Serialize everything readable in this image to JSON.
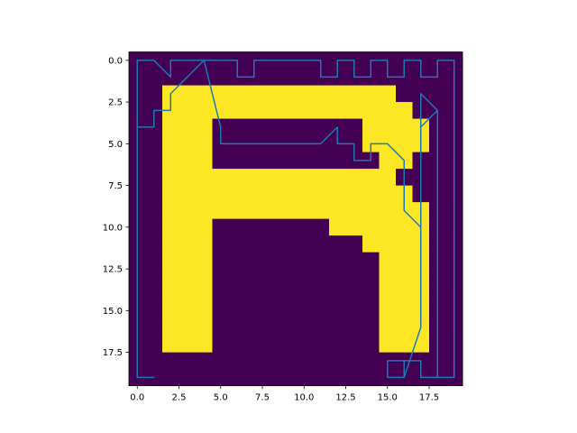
{
  "chart_data": {
    "type": "heatmap",
    "title": "",
    "xlabel": "",
    "ylabel": "",
    "xlim": [
      -0.5,
      19.5
    ],
    "ylim": [
      19.5,
      -0.5
    ],
    "grid": false,
    "legend": "none",
    "x_ticks": [
      0.0,
      2.5,
      5.0,
      7.5,
      10.0,
      12.5,
      15.0,
      17.5
    ],
    "x_tick_labels": [
      "0.0",
      "2.5",
      "5.0",
      "7.5",
      "10.0",
      "12.5",
      "15.0",
      "17.5"
    ],
    "y_ticks": [
      0.0,
      2.5,
      5.0,
      7.5,
      10.0,
      12.5,
      15.0,
      17.5
    ],
    "y_tick_labels": [
      "0.0",
      "2.5",
      "5.0",
      "7.5",
      "10.0",
      "12.5",
      "15.0",
      "17.5"
    ],
    "colormap": {
      "0": "#440154",
      "1": "#fde725"
    },
    "grid_values": [
      [
        0,
        0,
        0,
        0,
        0,
        0,
        0,
        0,
        0,
        0,
        0,
        0,
        0,
        0,
        0,
        0,
        0,
        0,
        0,
        0
      ],
      [
        0,
        0,
        0,
        0,
        0,
        0,
        0,
        0,
        0,
        0,
        0,
        0,
        0,
        0,
        0,
        0,
        0,
        0,
        0,
        0
      ],
      [
        0,
        0,
        1,
        1,
        1,
        1,
        1,
        1,
        1,
        1,
        1,
        1,
        1,
        1,
        1,
        1,
        0,
        0,
        0,
        0
      ],
      [
        0,
        0,
        1,
        1,
        1,
        1,
        1,
        1,
        1,
        1,
        1,
        1,
        1,
        1,
        1,
        1,
        1,
        0,
        0,
        0
      ],
      [
        0,
        0,
        1,
        1,
        1,
        0,
        0,
        0,
        0,
        0,
        0,
        0,
        0,
        0,
        1,
        1,
        1,
        1,
        0,
        0
      ],
      [
        0,
        0,
        1,
        1,
        1,
        0,
        0,
        0,
        0,
        0,
        0,
        0,
        0,
        0,
        1,
        1,
        1,
        1,
        0,
        0
      ],
      [
        0,
        0,
        1,
        1,
        1,
        0,
        0,
        0,
        0,
        0,
        0,
        0,
        0,
        0,
        0,
        1,
        1,
        0,
        0,
        0
      ],
      [
        0,
        0,
        1,
        1,
        1,
        1,
        1,
        1,
        1,
        1,
        1,
        1,
        1,
        1,
        1,
        1,
        0,
        0,
        0,
        0
      ],
      [
        0,
        0,
        1,
        1,
        1,
        1,
        1,
        1,
        1,
        1,
        1,
        1,
        1,
        1,
        1,
        1,
        1,
        0,
        0,
        0
      ],
      [
        0,
        0,
        1,
        1,
        1,
        1,
        1,
        1,
        1,
        1,
        1,
        1,
        1,
        1,
        1,
        1,
        1,
        1,
        0,
        0
      ],
      [
        0,
        0,
        1,
        1,
        1,
        0,
        0,
        0,
        0,
        0,
        0,
        0,
        1,
        1,
        1,
        1,
        1,
        1,
        0,
        0
      ],
      [
        0,
        0,
        1,
        1,
        1,
        0,
        0,
        0,
        0,
        0,
        0,
        0,
        0,
        0,
        1,
        1,
        1,
        1,
        0,
        0
      ],
      [
        0,
        0,
        1,
        1,
        1,
        0,
        0,
        0,
        0,
        0,
        0,
        0,
        0,
        0,
        0,
        1,
        1,
        1,
        0,
        0
      ],
      [
        0,
        0,
        1,
        1,
        1,
        0,
        0,
        0,
        0,
        0,
        0,
        0,
        0,
        0,
        0,
        1,
        1,
        1,
        0,
        0
      ],
      [
        0,
        0,
        1,
        1,
        1,
        0,
        0,
        0,
        0,
        0,
        0,
        0,
        0,
        0,
        0,
        1,
        1,
        1,
        0,
        0
      ],
      [
        0,
        0,
        1,
        1,
        1,
        0,
        0,
        0,
        0,
        0,
        0,
        0,
        0,
        0,
        0,
        1,
        1,
        1,
        0,
        0
      ],
      [
        0,
        0,
        1,
        1,
        1,
        0,
        0,
        0,
        0,
        0,
        0,
        0,
        0,
        0,
        0,
        1,
        1,
        1,
        0,
        0
      ],
      [
        0,
        0,
        1,
        1,
        1,
        0,
        0,
        0,
        0,
        0,
        0,
        0,
        0,
        0,
        0,
        1,
        1,
        1,
        0,
        0
      ],
      [
        0,
        0,
        0,
        0,
        0,
        0,
        0,
        0,
        0,
        0,
        0,
        0,
        0,
        0,
        0,
        0,
        0,
        0,
        0,
        0
      ],
      [
        0,
        0,
        0,
        0,
        0,
        0,
        0,
        0,
        0,
        0,
        0,
        0,
        0,
        0,
        0,
        0,
        0,
        0,
        0,
        0
      ]
    ],
    "series": [
      {
        "type": "line",
        "color": "#1f77b4",
        "x": [
          0,
          0,
          1,
          2,
          2,
          6,
          6,
          7,
          7,
          11,
          11,
          12,
          12,
          13,
          13,
          14,
          14,
          15,
          15,
          16,
          16,
          17,
          17,
          18,
          18,
          19,
          19,
          18,
          18,
          17,
          17,
          16,
          16,
          15,
          15,
          16,
          16,
          17,
          17,
          18,
          18,
          17,
          17,
          16,
          16,
          15,
          14,
          14,
          13,
          13,
          12,
          12,
          11,
          10,
          9,
          8,
          7,
          6,
          5,
          5,
          4,
          4,
          3,
          3,
          2,
          2,
          1,
          1,
          0,
          0,
          1,
          0,
          0
        ],
        "y": [
          19,
          0,
          0,
          1,
          0,
          0,
          1,
          1,
          0,
          0,
          1,
          1,
          0,
          0,
          1,
          1,
          0,
          0,
          1,
          1,
          0,
          0,
          1,
          1,
          0,
          0,
          19,
          19,
          3,
          2,
          16,
          19,
          18,
          18,
          19,
          19,
          18,
          18,
          19,
          19,
          3,
          4,
          10,
          9,
          6,
          5,
          5,
          6,
          6,
          5,
          5,
          4,
          5,
          5,
          5,
          5,
          5,
          5,
          5,
          4,
          0,
          0,
          1,
          1,
          2,
          3,
          3,
          4,
          4,
          19,
          19,
          19,
          19
        ]
      }
    ]
  }
}
